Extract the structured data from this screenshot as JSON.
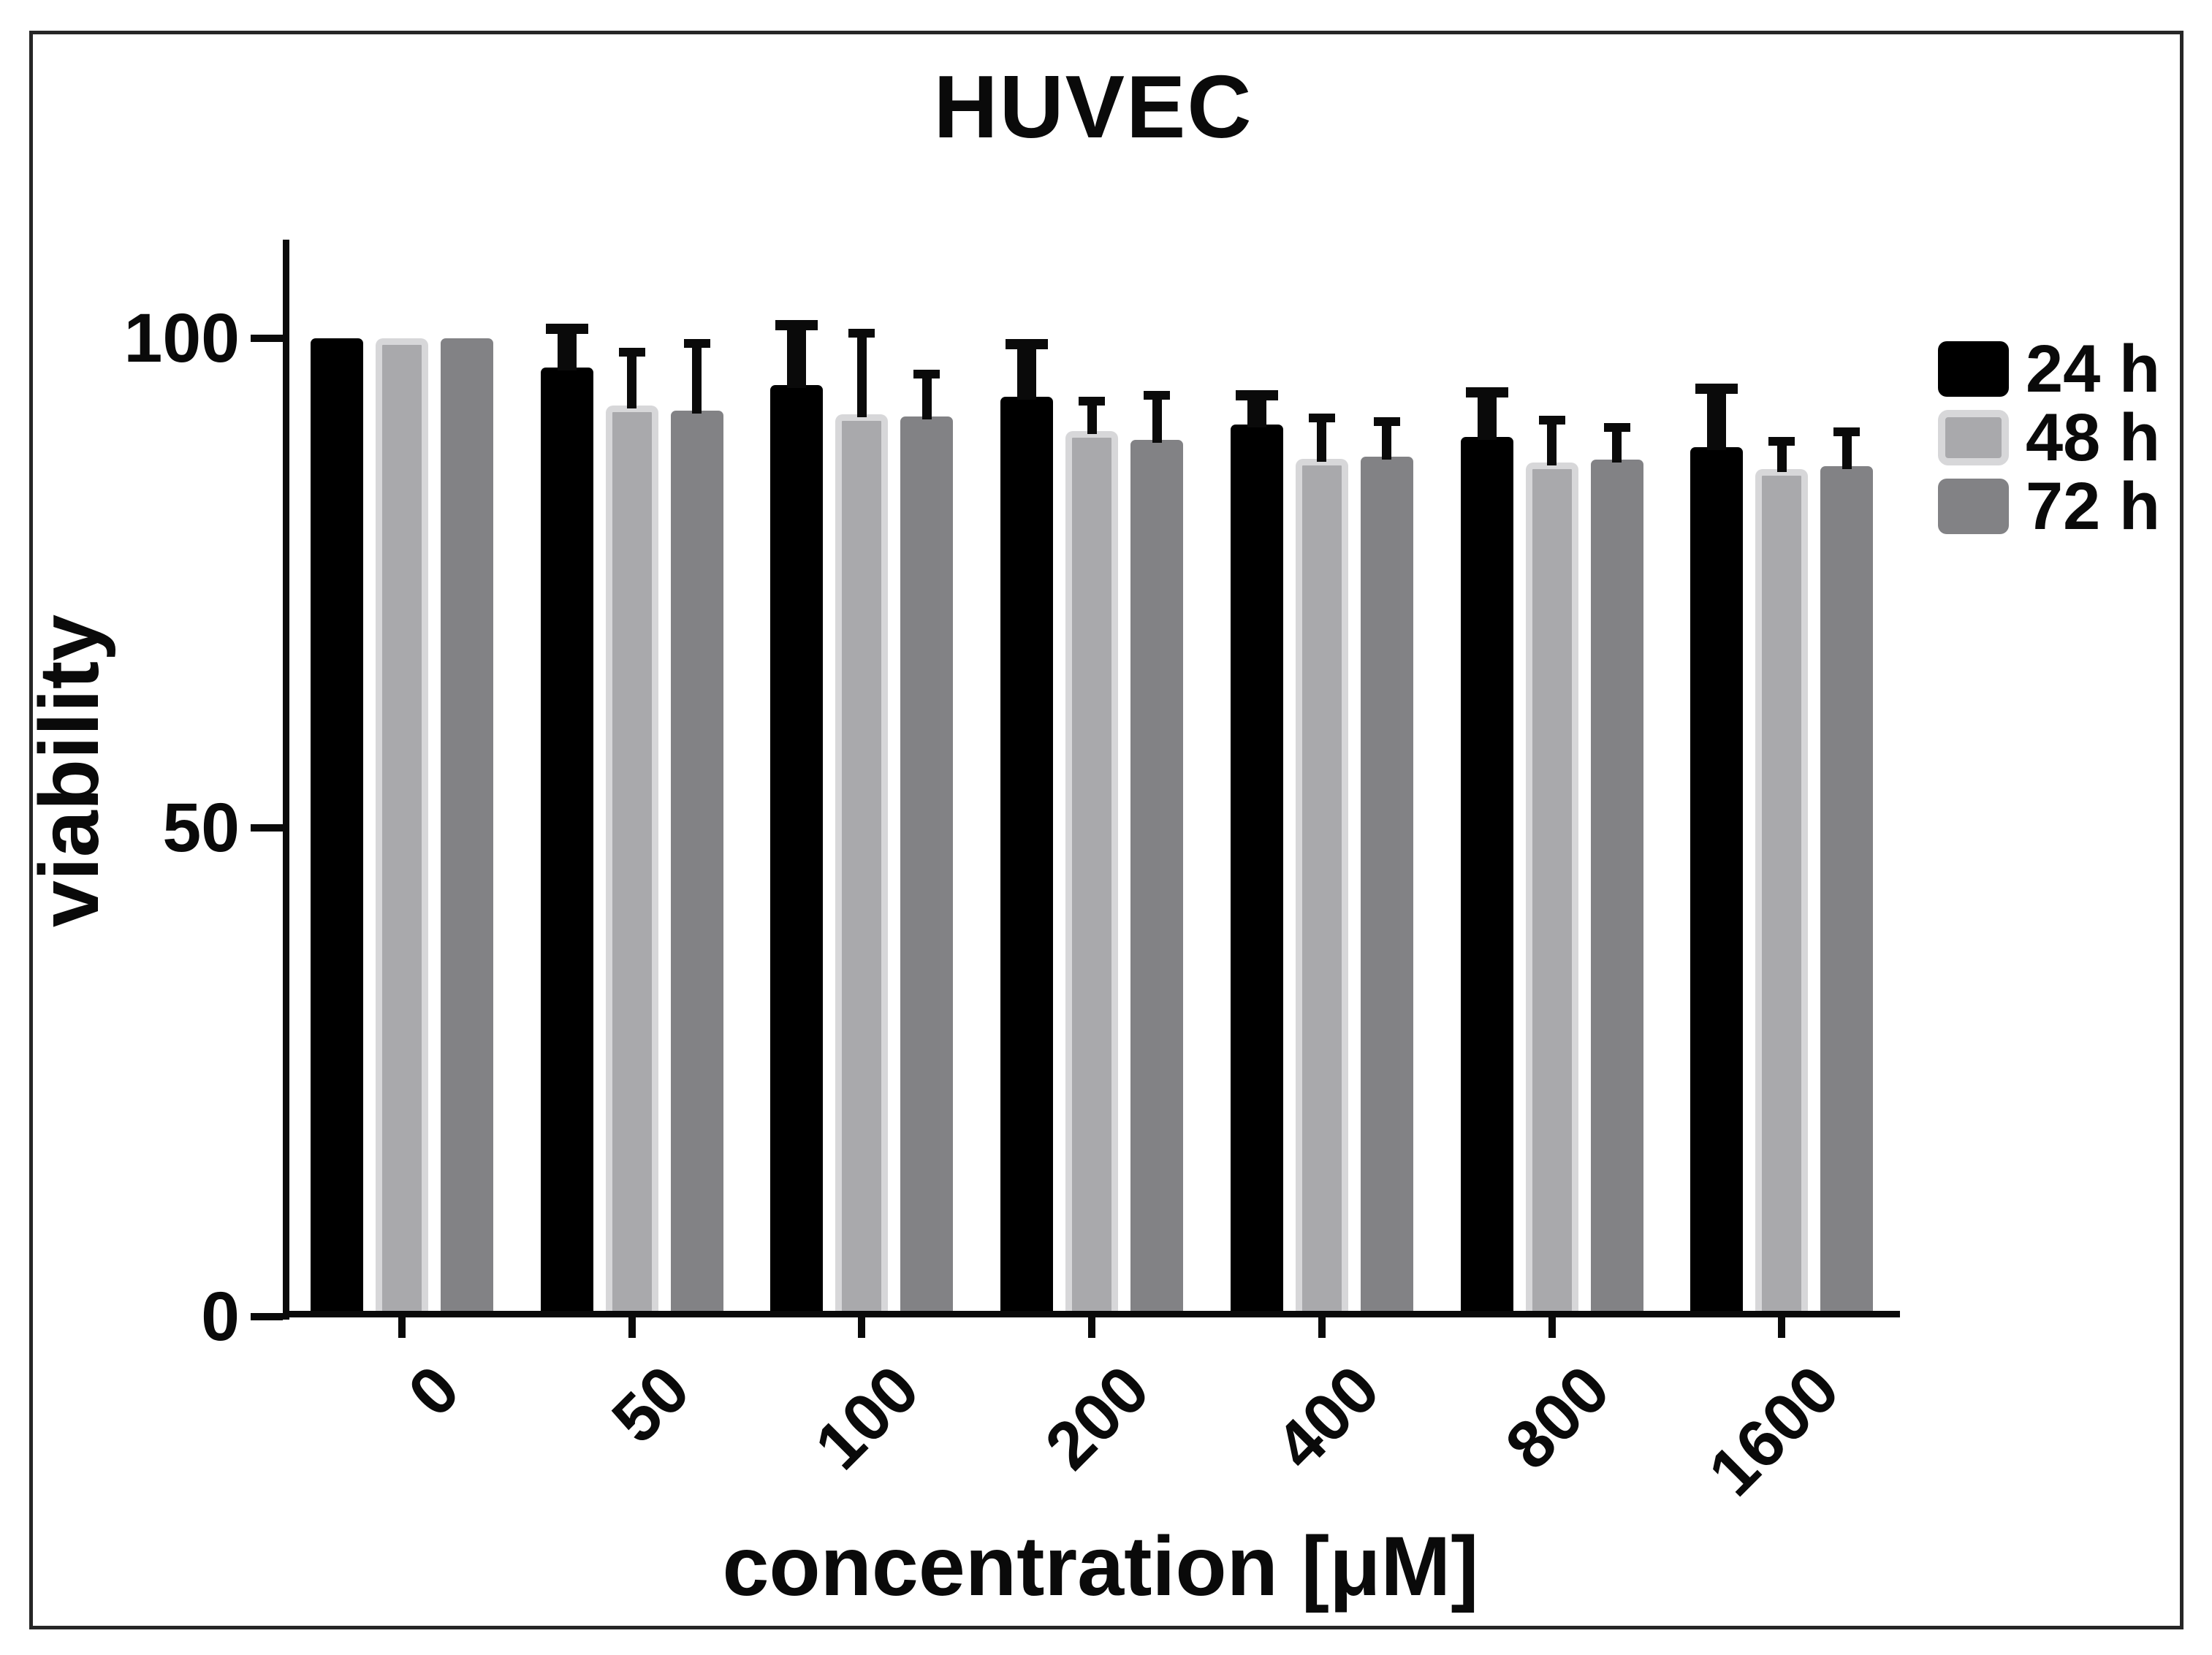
{
  "figure": {
    "background_color": "#ffffff",
    "frame_color": "#262626"
  },
  "chart_data": {
    "type": "bar",
    "title": "HUVEC",
    "xlabel": "concentration [μM]",
    "ylabel": "viability",
    "categories": [
      "0",
      "50",
      "100",
      "200",
      "400",
      "800",
      "1600"
    ],
    "y_ticks": [
      {
        "value": 0,
        "label": "0"
      },
      {
        "value": 50,
        "label": "50"
      },
      {
        "value": 100,
        "label": "100"
      }
    ],
    "ylim": [
      0,
      110
    ],
    "grid": false,
    "legend_position": "right",
    "error_bars": "upper only",
    "series": [
      {
        "name": "24 h",
        "color": "#000000",
        "values": [
          100,
          97.0,
          95.2,
          94.0,
          91.2,
          89.9,
          88.9
        ],
        "errors_plus": [
          0,
          4.5,
          6.7,
          5.9,
          3.5,
          5.1,
          6.5
        ]
      },
      {
        "name": "48 h",
        "color": "#a9a9ac",
        "border_color": "#d7d7d9",
        "values": [
          100,
          93.1,
          92.2,
          90.5,
          87.7,
          87.3,
          86.6
        ],
        "errors_plus": [
          0,
          5.9,
          8.8,
          3.5,
          4.6,
          4.8,
          3.3
        ]
      },
      {
        "name": "72 h",
        "color": "#828285",
        "values": [
          100,
          92.6,
          92.0,
          89.6,
          87.9,
          87.6,
          86.9
        ],
        "errors_plus": [
          0,
          7.3,
          4.8,
          5.0,
          4.0,
          3.7,
          4.0
        ]
      }
    ]
  }
}
